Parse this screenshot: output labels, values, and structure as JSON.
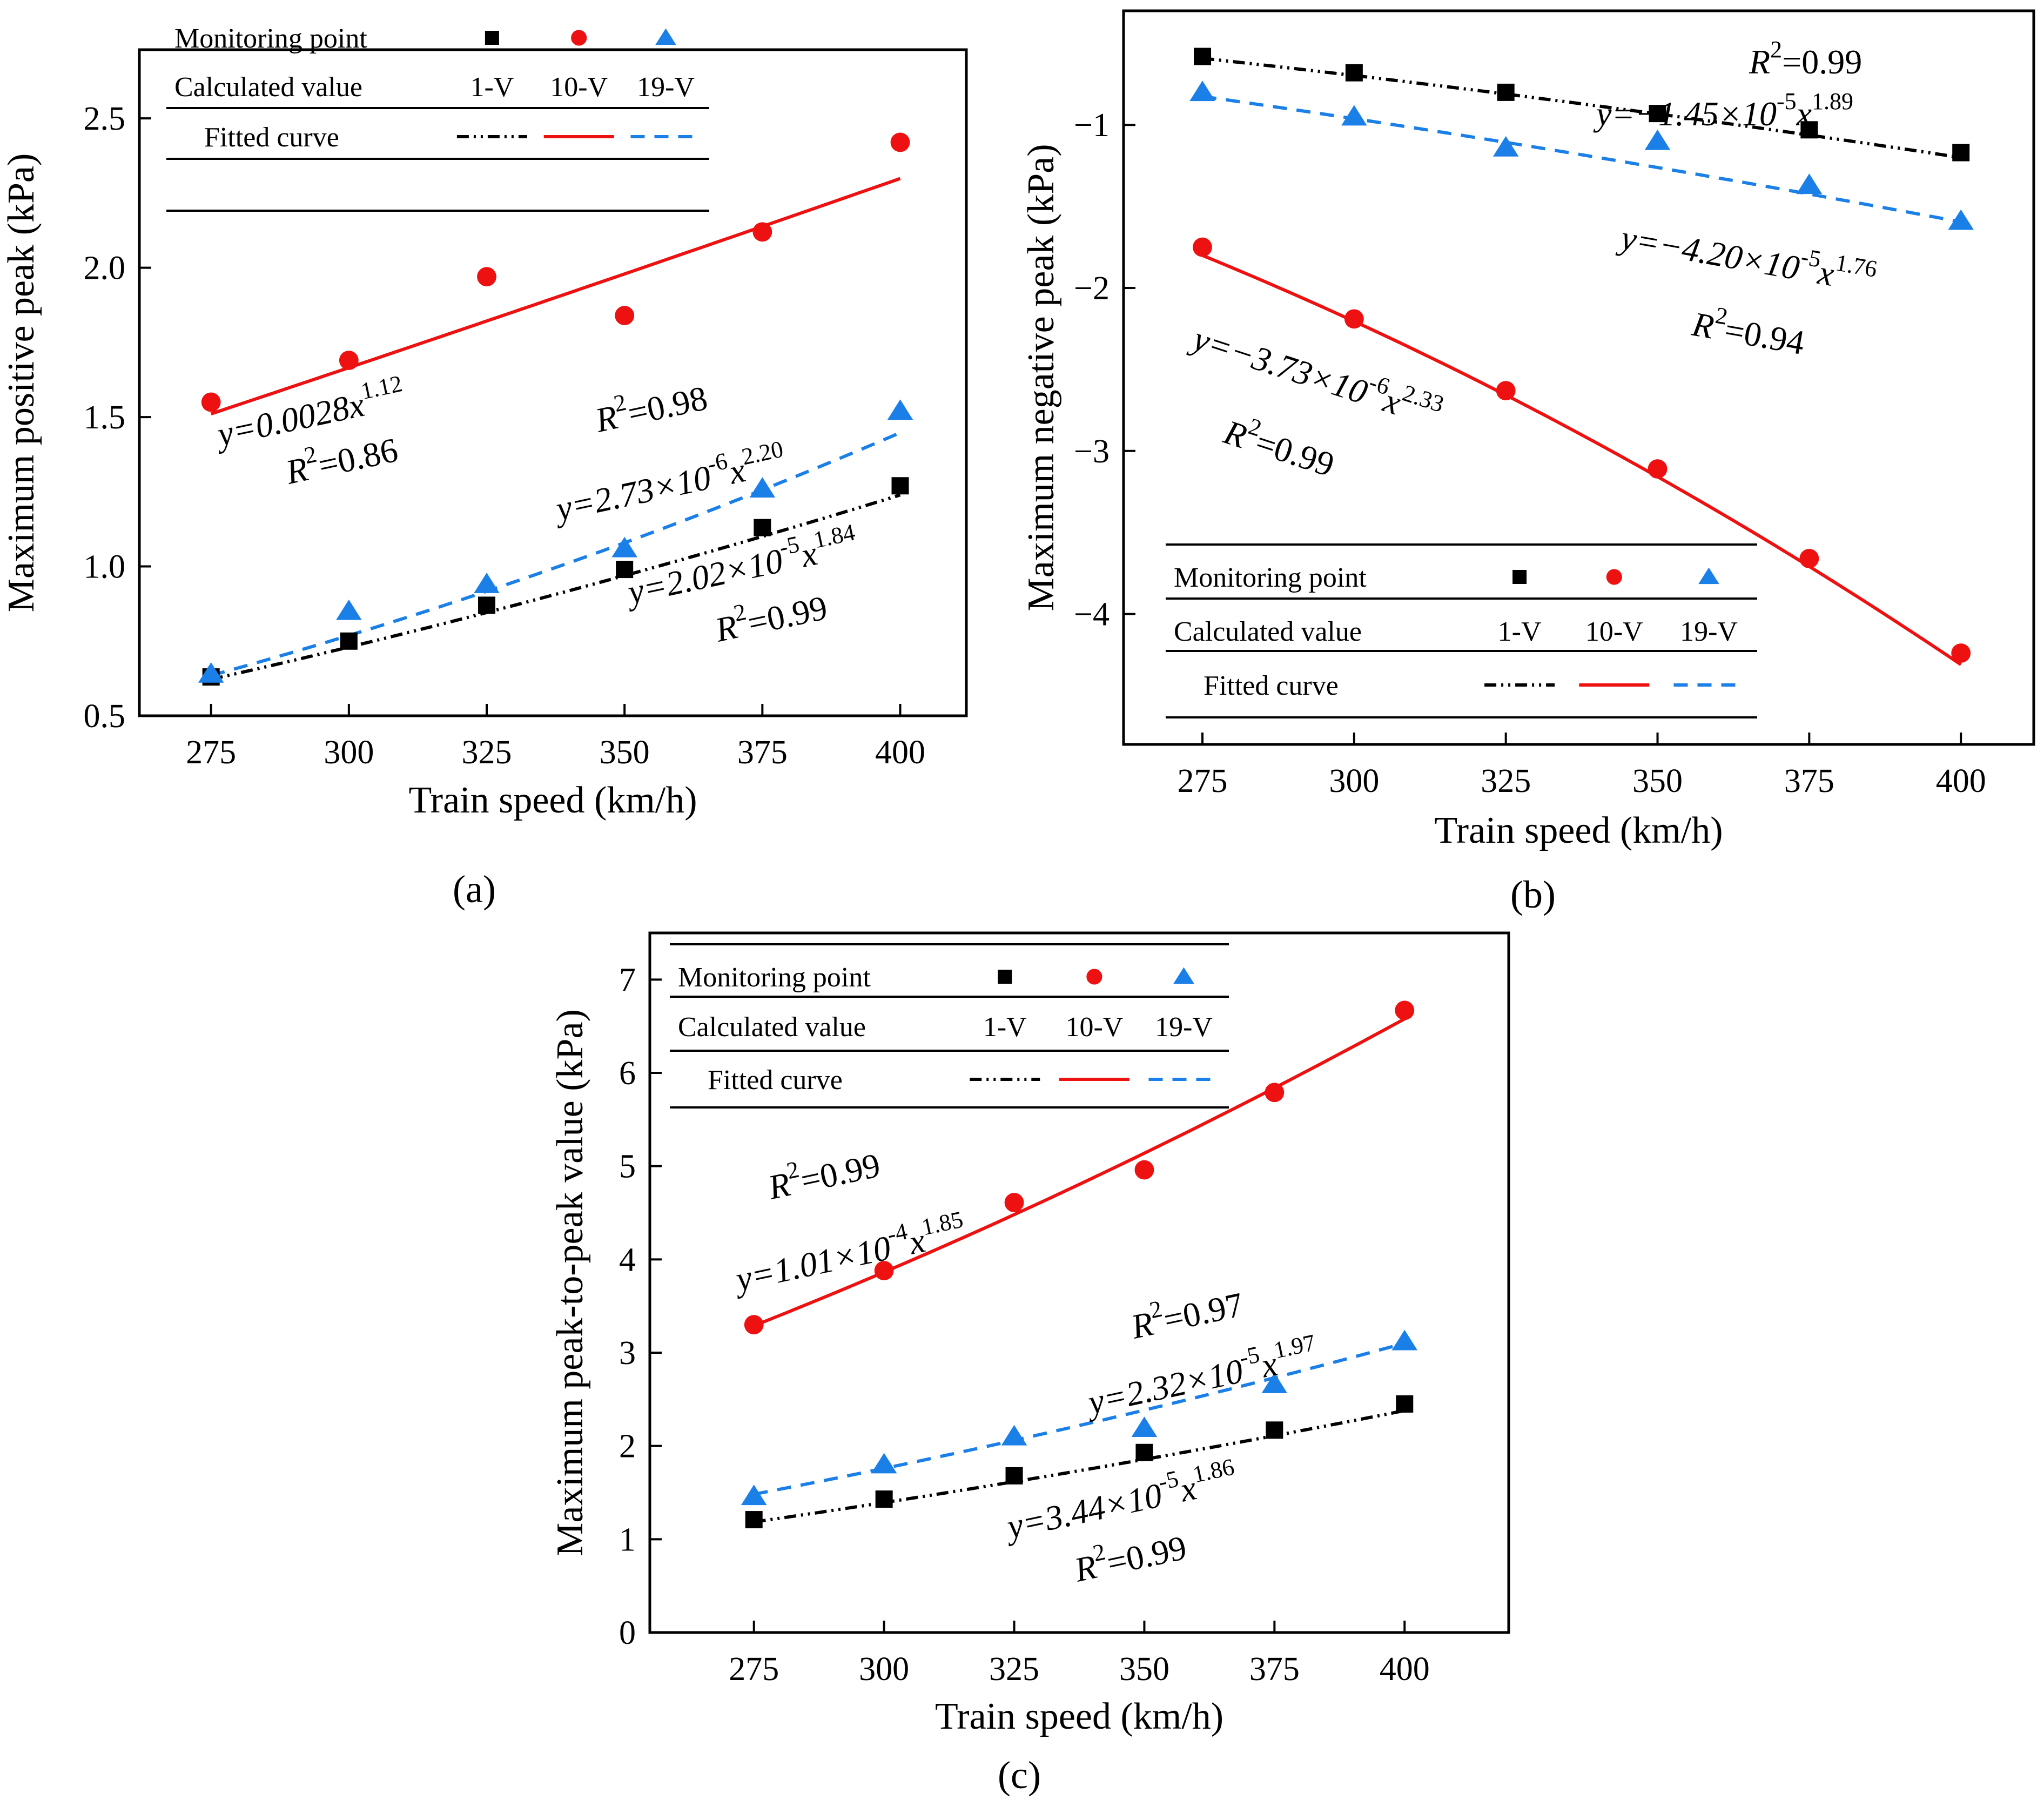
{
  "markers": {
    "1-V": "square",
    "10-V": "circle",
    "19-V": "triangle"
  },
  "colors": {
    "1-V": "#000000",
    "10-V": "#ee1111",
    "19-V": "#1a7fe6"
  },
  "line_styles": {
    "1-V": "dash-dot-dot",
    "10-V": "solid",
    "19-V": "dashed"
  },
  "legend": {
    "header_label": "Monitoring point",
    "row2_label": "Calculated value",
    "row3_label": "Fitted curve",
    "series": [
      "1-V",
      "10-V",
      "19-V"
    ]
  },
  "chart_data": [
    {
      "type": "scatter",
      "panel_label": "(a)",
      "xlabel": "Train speed (km/h)",
      "ylabel": "Maximum positive peak (kPa)",
      "xlim": [
        262,
        412
      ],
      "ylim": [
        0.5,
        2.73
      ],
      "xticks": [
        "275",
        "300",
        "325",
        "350",
        "375",
        "400"
      ],
      "yticks": [
        "0.5",
        "1.0",
        "1.5",
        "2.0",
        "2.5"
      ],
      "legend_position": "top-left",
      "series": [
        {
          "name": "1-V",
          "x": [
            275,
            300,
            325,
            350,
            375,
            400
          ],
          "values": [
            0.63,
            0.75,
            0.87,
            0.99,
            1.13,
            1.27
          ],
          "fit": {
            "a": 2.02e-05,
            "b": 1.84
          },
          "equation": [
            "y=2.02×10",
            "-5",
            "x",
            "1.84"
          ],
          "r2": [
            "R",
            "2",
            "=0.99"
          ]
        },
        {
          "name": "10-V",
          "x": [
            275,
            300,
            325,
            350,
            375,
            400
          ],
          "values": [
            1.55,
            1.69,
            1.97,
            1.84,
            2.12,
            2.42
          ],
          "fit": {
            "a": 0.0028,
            "b": 1.12
          },
          "equation": [
            "y=0.0028x",
            "1.12",
            "",
            ""
          ],
          "r2": [
            "R",
            "2",
            "=0.86"
          ]
        },
        {
          "name": "19-V",
          "x": [
            275,
            300,
            325,
            350,
            375,
            400
          ],
          "values": [
            0.64,
            0.85,
            0.94,
            1.06,
            1.26,
            1.52
          ],
          "fit": {
            "a": 2.73e-06,
            "b": 2.2
          },
          "equation": [
            "y=2.73×10",
            "-6",
            "x",
            "2.20"
          ],
          "r2": [
            "R",
            "2",
            "=0.98"
          ]
        }
      ]
    },
    {
      "type": "scatter",
      "panel_label": "(b)",
      "xlabel": "Train speed (km/h)",
      "ylabel": "Maximum negative peak (kPa)",
      "xlim": [
        262,
        412
      ],
      "ylim": [
        -4.8,
        -0.3
      ],
      "xticks": [
        "275",
        "300",
        "325",
        "350",
        "375",
        "400"
      ],
      "yticks": [
        "-1",
        "-2",
        "-3",
        "-4"
      ],
      "legend_position": "bottom-right",
      "series": [
        {
          "name": "1-V",
          "x": [
            275,
            300,
            325,
            350,
            375,
            400
          ],
          "values": [
            -0.58,
            -0.68,
            -0.8,
            -0.93,
            -1.03,
            -1.17
          ],
          "fit": {
            "a": -1.45e-05,
            "b": 1.89
          },
          "equation": [
            "y=−1.45×10",
            "-5",
            "x",
            "1.89"
          ],
          "r2": [
            "R",
            "2",
            "=0.99"
          ]
        },
        {
          "name": "10-V",
          "x": [
            275,
            300,
            325,
            350,
            375,
            400
          ],
          "values": [
            -1.75,
            -2.19,
            -2.63,
            -3.11,
            -3.66,
            -4.24
          ],
          "fit": {
            "a": -3.73e-06,
            "b": 2.33
          },
          "equation": [
            "y=−3.73×10",
            "-6",
            "x",
            "2.33"
          ],
          "r2": [
            "R",
            "2",
            "=0.99"
          ]
        },
        {
          "name": "19-V",
          "x": [
            275,
            300,
            325,
            350,
            375,
            400
          ],
          "values": [
            -0.8,
            -0.95,
            -1.14,
            -1.1,
            -1.37,
            -1.59
          ],
          "fit": {
            "a": -4.2e-05,
            "b": 1.76
          },
          "equation": [
            "y=−4.20×10",
            "-5",
            "x",
            "1.76"
          ],
          "r2": [
            "R",
            "2",
            "=0.94"
          ]
        }
      ]
    },
    {
      "type": "scatter",
      "panel_label": "(c)",
      "xlabel": "Train speed (km/h)",
      "ylabel": "Maximum peak-to-peak value (kPa)",
      "xlim": [
        255,
        420
      ],
      "ylim": [
        0,
        7.5
      ],
      "xticks": [
        "275",
        "300",
        "325",
        "350",
        "375",
        "400"
      ],
      "yticks": [
        "0",
        "1",
        "2",
        "3",
        "4",
        "5",
        "6",
        "7"
      ],
      "legend_position": "top-left",
      "series": [
        {
          "name": "1-V",
          "x": [
            275,
            300,
            325,
            350,
            375,
            400
          ],
          "values": [
            1.21,
            1.43,
            1.68,
            1.93,
            2.17,
            2.45
          ],
          "fit": {
            "a": 3.44e-05,
            "b": 1.86
          },
          "equation": [
            "y=3.44×10",
            "-5",
            "x",
            "1.86"
          ],
          "r2": [
            "R",
            "2",
            "=0.99"
          ]
        },
        {
          "name": "10-V",
          "x": [
            275,
            300,
            325,
            350,
            375,
            400
          ],
          "values": [
            3.3,
            3.88,
            4.61,
            4.96,
            5.79,
            6.67
          ],
          "fit": {
            "a": 0.000101,
            "b": 1.85
          },
          "equation": [
            "y=1.01×10",
            "-4",
            "x",
            "1.85"
          ],
          "r2": [
            "R",
            "2",
            "=0.99"
          ]
        },
        {
          "name": "19-V",
          "x": [
            275,
            300,
            325,
            350,
            375,
            400
          ],
          "values": [
            1.46,
            1.8,
            2.1,
            2.19,
            2.66,
            3.12
          ],
          "fit": {
            "a": 2.32e-05,
            "b": 1.97
          },
          "equation": [
            "y=2.32×10",
            "-5",
            "x",
            "1.97"
          ],
          "r2": [
            "R",
            "2",
            "=0.97"
          ]
        }
      ]
    }
  ]
}
